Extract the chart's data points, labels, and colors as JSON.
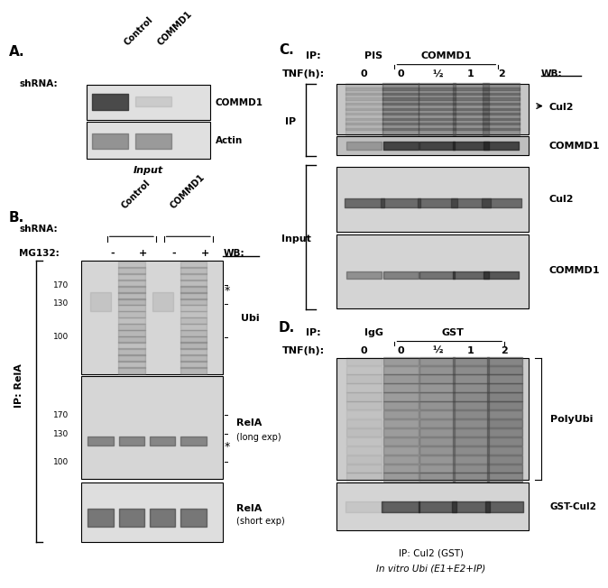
{
  "panel_A": {
    "label": "A.",
    "shrna_label": "shRNA:",
    "lane_labels": [
      "Control",
      "COMMD1"
    ],
    "blot_labels": [
      "COMMD1",
      "Actin"
    ],
    "bottom_label": "Input"
  },
  "panel_B": {
    "label": "B.",
    "shrna_label": "shRNA:",
    "group_labels": [
      "Control",
      "COMMD1"
    ],
    "mg132_label": "MG132:",
    "mg132_vals": [
      "-",
      "+",
      "-",
      "+"
    ],
    "wb_label": "WB:",
    "mw_marks_ubi": [
      170,
      130,
      100
    ],
    "mw_marks_rela": [
      170,
      130,
      100
    ],
    "blot_labels": [
      "Ubi",
      "RelA\n(long exp)",
      "RelA\n(short exp)"
    ],
    "left_label": "IP: RelA"
  },
  "panel_C": {
    "label": "C.",
    "ip_label": "IP:",
    "ip_groups": [
      "PIS",
      "COMMD1"
    ],
    "tnf_label": "TNF(h):",
    "tnf_vals": [
      "0",
      "0",
      "½",
      "1",
      "2"
    ],
    "wb_label": "WB:",
    "left_ip_label": "IP",
    "left_input_label": "Input",
    "blot_labels_ip": [
      "Cul2",
      "COMMD1"
    ],
    "blot_labels_input": [
      "Cul2",
      "COMMD1"
    ],
    "arrow_label": "Cul2"
  },
  "panel_D": {
    "label": "D.",
    "ip_label": "IP:",
    "ip_groups": [
      "IgG",
      "GST"
    ],
    "tnf_label": "TNF(h):",
    "tnf_vals": [
      "0",
      "0",
      "½",
      "1",
      "2"
    ],
    "blot_labels": [
      "PolyUbi",
      "GST-Cul2"
    ],
    "bottom_label1": "IP: Cul2 (GST)",
    "bottom_label2": "In vitro Ubi (E1+E2+IP)"
  },
  "figure_bg": "#ffffff",
  "text_color": "#000000"
}
